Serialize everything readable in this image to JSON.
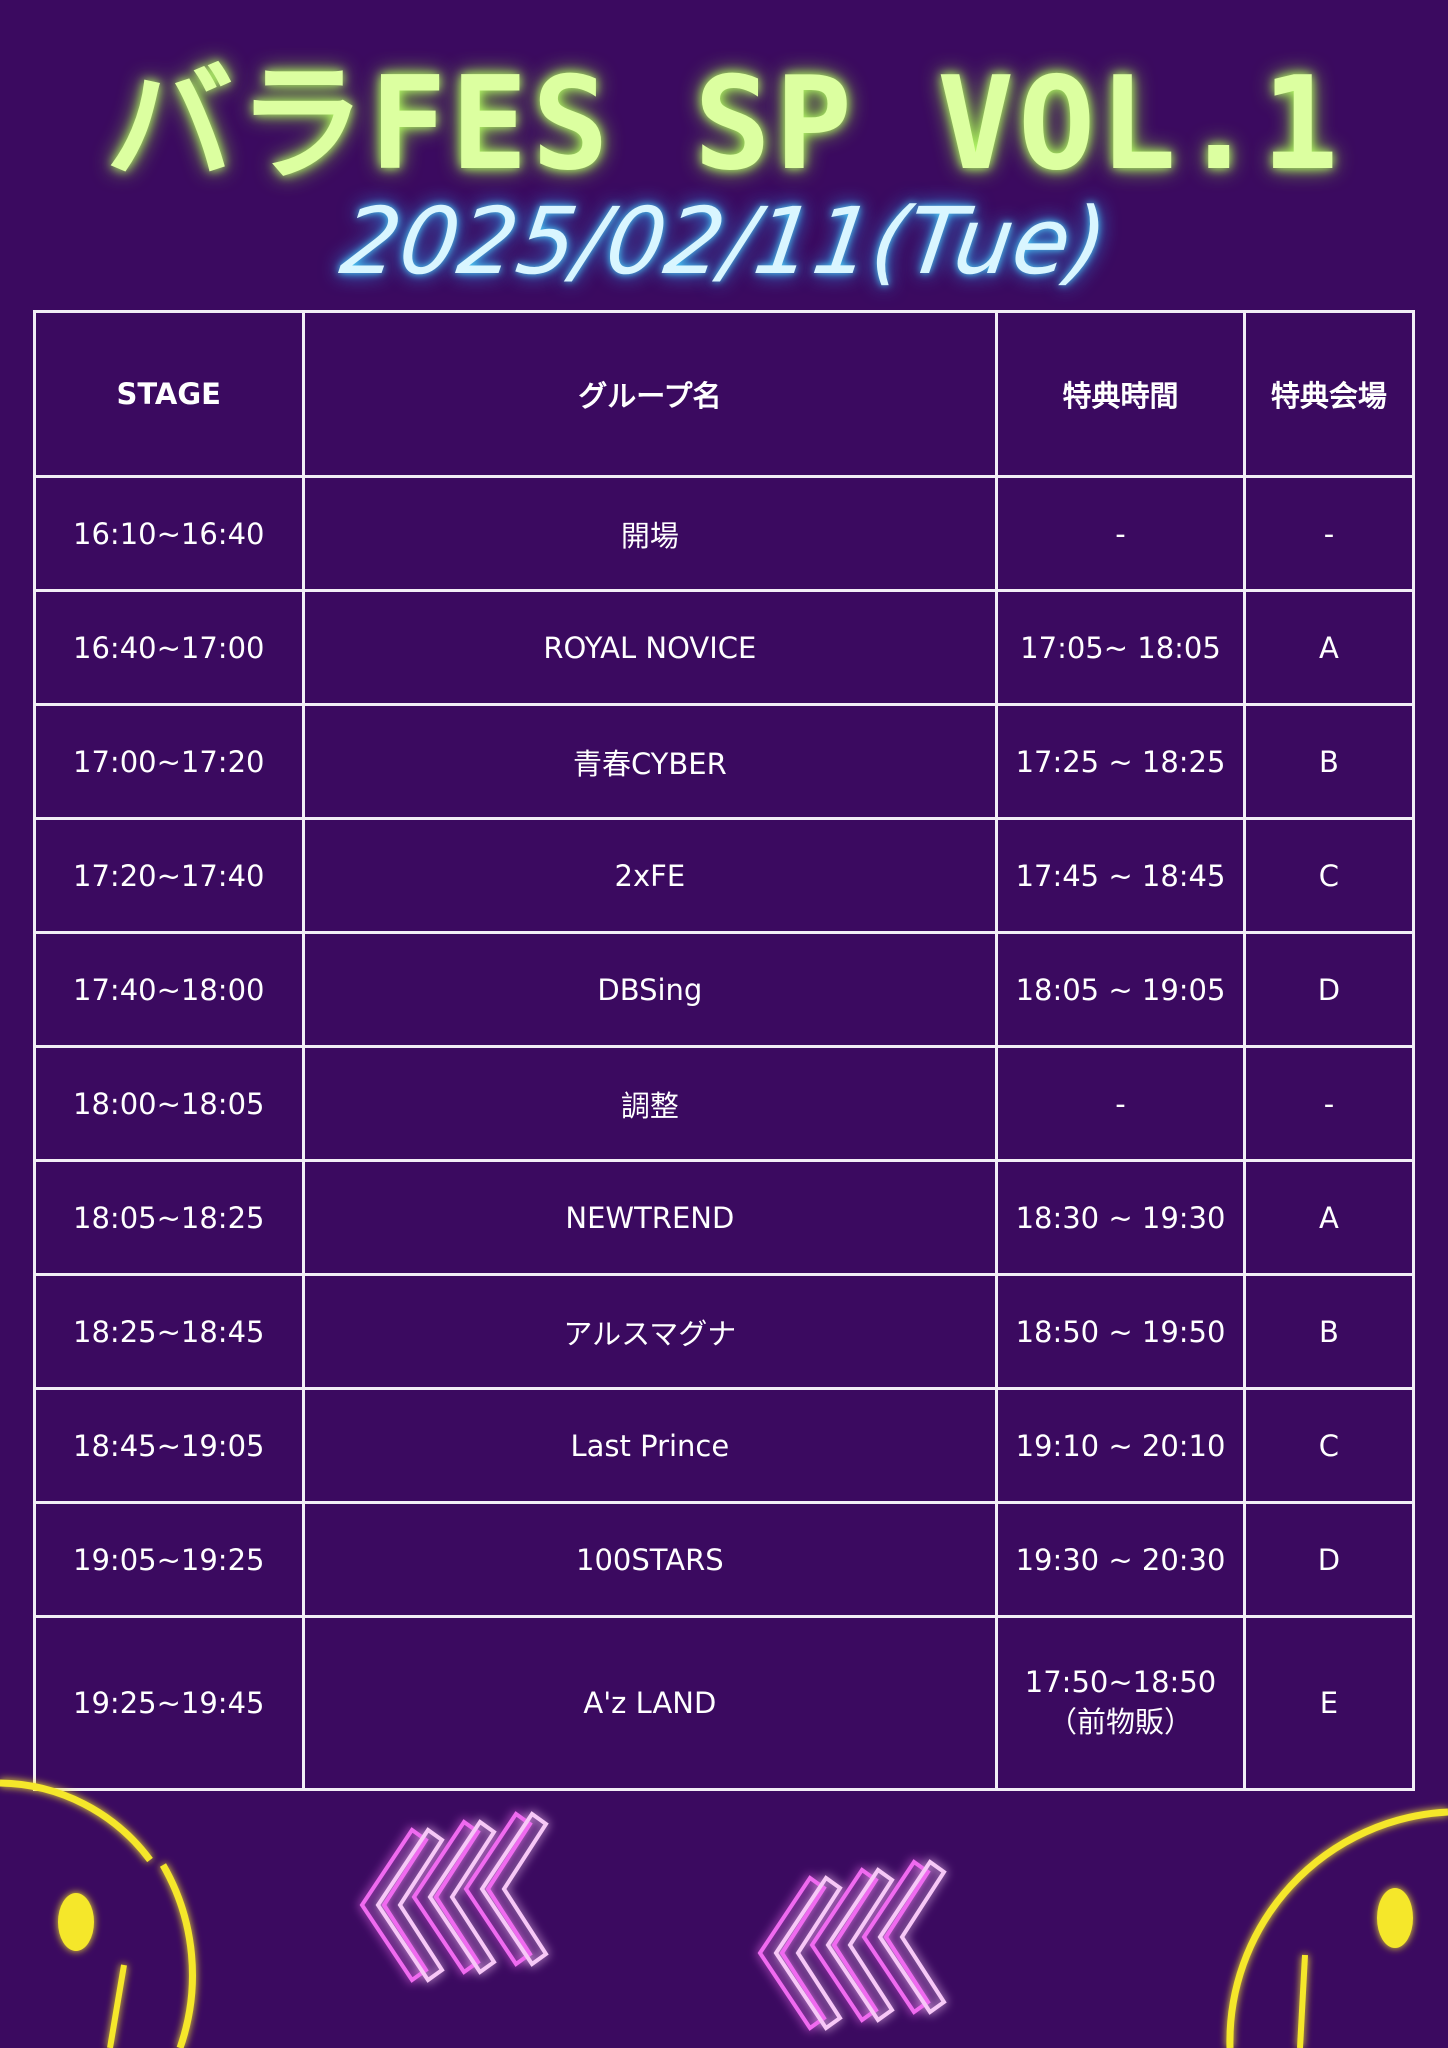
{
  "title": "バラFES SP VOL.1",
  "date": "2025/02/11(Tue)",
  "table": {
    "headers": [
      "STAGE",
      "グループ名",
      "特典時間",
      "特典会場"
    ],
    "rows": [
      [
        "16:10~16:40",
        "開場",
        "-",
        "-"
      ],
      [
        "16:40~17:00",
        "ROYAL NOVICE",
        "17:05~ 18:05",
        "A"
      ],
      [
        "17:00~17:20",
        "青春CYBER",
        "17:25 ~ 18:25",
        "B"
      ],
      [
        "17:20~17:40",
        "2xFE",
        "17:45 ~ 18:45",
        "C"
      ],
      [
        "17:40~18:00",
        "DBSing",
        "18:05 ~ 19:05",
        "D"
      ],
      [
        "18:00~18:05",
        "調整",
        "-",
        "-"
      ],
      [
        "18:05~18:25",
        "NEWTREND",
        "18:30 ~ 19:30",
        "A"
      ],
      [
        "18:25~18:45",
        "アルスマグナ",
        "18:50 ~ 19:50",
        "B"
      ],
      [
        "18:45~19:05",
        "Last Prince",
        "19:10 ~ 20:10",
        "C"
      ],
      [
        "19:05~19:25",
        "100STARS",
        "19:30 ~ 20:30",
        "D"
      ]
    ],
    "last_row": {
      "stage": "19:25~19:45",
      "group": "A'z LAND",
      "time_line1": "17:50~18:50",
      "time_line2": "（前物販）",
      "venue": "E"
    }
  },
  "colors": {
    "background": "#3b0a60",
    "title": "#dcffa0",
    "date": "#d9f6ff",
    "smiley": "#f5e72a",
    "chevrons": "#f06bf0"
  }
}
